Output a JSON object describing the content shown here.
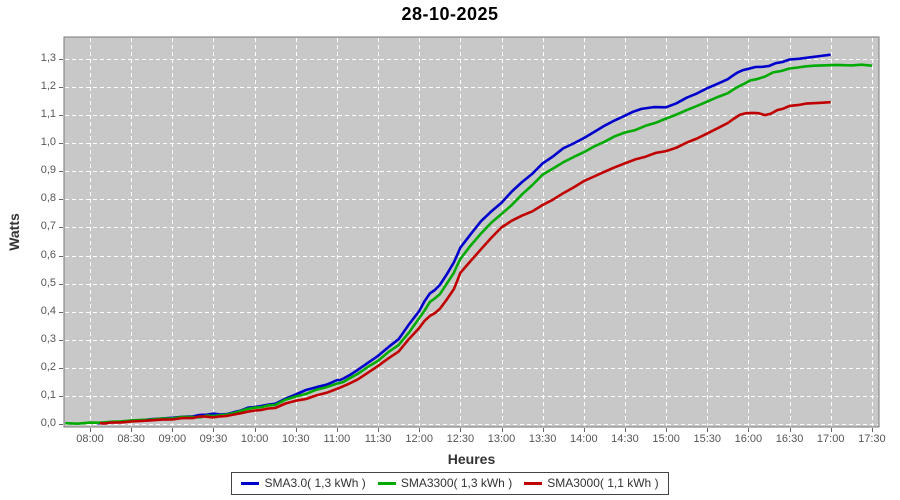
{
  "chart": {
    "title": "28-10-2025",
    "x_axis_label": "Heures",
    "y_axis_label": "Watts",
    "x_tick_labels": [
      "08:00",
      "08:30",
      "09:00",
      "09:30",
      "10:00",
      "10:30",
      "11:00",
      "11:30",
      "12:00",
      "12:30",
      "13:00",
      "13:30",
      "14:00",
      "14:30",
      "15:00",
      "15:30",
      "16:00",
      "16:30",
      "17:00",
      "17:30"
    ],
    "y_tick_labels": [
      "0,0",
      "0,1",
      "0,2",
      "0,3",
      "0,4",
      "0,5",
      "0,6",
      "0,7",
      "0,8",
      "0,9",
      "1,0",
      "1,1",
      "1,2",
      "1,3"
    ]
  },
  "colors": {
    "plot_background": "#C8C8C8",
    "plot_border": "#7A7A7A",
    "gridline": "#FFFFFF",
    "tick_mark": "#666666",
    "tick_text": "#555555",
    "series_blue": "#0000CC",
    "series_green": "#00AA00",
    "series_red": "#C00000"
  },
  "chart_data": {
    "type": "line",
    "title": "28-10-2025",
    "xlabel": "Heures",
    "ylabel": "Watts",
    "x_unit": "hour_of_day",
    "xlim": [
      7.68,
      17.58
    ],
    "ylim": [
      0.0,
      1.3
    ],
    "x_ticks_hours": [
      8.0,
      8.5,
      9.0,
      9.5,
      10.0,
      10.5,
      11.0,
      11.5,
      12.0,
      12.5,
      13.0,
      13.5,
      14.0,
      14.5,
      15.0,
      15.5,
      16.0,
      16.5,
      17.0,
      17.5
    ],
    "y_ticks": [
      0.0,
      0.1,
      0.2,
      0.3,
      0.4,
      0.5,
      0.6,
      0.7,
      0.8,
      0.9,
      1.0,
      1.1,
      1.2,
      1.3
    ],
    "grid": true,
    "grid_style": "white-dashed-on-gray",
    "legend_position": "bottom-center",
    "series": [
      {
        "name": "SMA3.0",
        "legend_label": "SMA3.0( 1,3 kWh )",
        "total_kwh_label": "1,3 kWh",
        "color": "#0000CC",
        "points": [
          [
            8.08,
            0.004
          ],
          [
            8.25,
            0.007
          ],
          [
            8.5,
            0.012
          ],
          [
            8.75,
            0.017
          ],
          [
            9.0,
            0.022
          ],
          [
            9.25,
            0.027
          ],
          [
            9.42,
            0.033
          ],
          [
            9.58,
            0.034
          ],
          [
            9.75,
            0.042
          ],
          [
            9.92,
            0.058
          ],
          [
            10.08,
            0.064
          ],
          [
            10.25,
            0.072
          ],
          [
            10.5,
            0.105
          ],
          [
            10.75,
            0.131
          ],
          [
            11.0,
            0.156
          ],
          [
            11.08,
            0.162
          ],
          [
            11.25,
            0.192
          ],
          [
            11.5,
            0.243
          ],
          [
            11.75,
            0.302
          ],
          [
            12.0,
            0.402
          ],
          [
            12.13,
            0.465
          ],
          [
            12.25,
            0.495
          ],
          [
            12.42,
            0.575
          ],
          [
            12.5,
            0.628
          ],
          [
            12.75,
            0.722
          ],
          [
            13.0,
            0.788
          ],
          [
            13.25,
            0.862
          ],
          [
            13.5,
            0.928
          ],
          [
            13.75,
            0.982
          ],
          [
            14.0,
            1.018
          ],
          [
            14.25,
            1.062
          ],
          [
            14.5,
            1.098
          ],
          [
            14.7,
            1.122
          ],
          [
            15.0,
            1.128
          ],
          [
            15.25,
            1.162
          ],
          [
            15.5,
            1.196
          ],
          [
            15.75,
            1.228
          ],
          [
            15.87,
            1.252
          ],
          [
            16.0,
            1.265
          ],
          [
            16.17,
            1.272
          ],
          [
            16.33,
            1.285
          ],
          [
            16.5,
            1.298
          ],
          [
            16.75,
            1.306
          ],
          [
            17.0,
            1.315
          ]
        ]
      },
      {
        "name": "SMA3300",
        "legend_label": "SMA3300( 1,3 kWh )",
        "total_kwh_label": "1,3 kWh",
        "color": "#00AA00",
        "points": [
          [
            7.7,
            0.003
          ],
          [
            8.0,
            0.005
          ],
          [
            8.25,
            0.008
          ],
          [
            8.5,
            0.012
          ],
          [
            8.75,
            0.016
          ],
          [
            9.0,
            0.02
          ],
          [
            9.25,
            0.025
          ],
          [
            9.42,
            0.03
          ],
          [
            9.58,
            0.031
          ],
          [
            9.75,
            0.039
          ],
          [
            9.92,
            0.054
          ],
          [
            10.08,
            0.06
          ],
          [
            10.25,
            0.068
          ],
          [
            10.5,
            0.098
          ],
          [
            10.75,
            0.122
          ],
          [
            11.0,
            0.144
          ],
          [
            11.08,
            0.15
          ],
          [
            11.25,
            0.178
          ],
          [
            11.5,
            0.225
          ],
          [
            11.75,
            0.281
          ],
          [
            12.0,
            0.377
          ],
          [
            12.13,
            0.435
          ],
          [
            12.25,
            0.462
          ],
          [
            12.42,
            0.538
          ],
          [
            12.5,
            0.588
          ],
          [
            12.75,
            0.678
          ],
          [
            13.0,
            0.748
          ],
          [
            13.25,
            0.818
          ],
          [
            13.5,
            0.888
          ],
          [
            13.75,
            0.932
          ],
          [
            14.0,
            0.968
          ],
          [
            14.25,
            1.005
          ],
          [
            14.5,
            1.038
          ],
          [
            14.75,
            1.062
          ],
          [
            15.0,
            1.088
          ],
          [
            15.25,
            1.118
          ],
          [
            15.5,
            1.148
          ],
          [
            15.75,
            1.178
          ],
          [
            15.95,
            1.212
          ],
          [
            16.1,
            1.228
          ],
          [
            16.3,
            1.252
          ],
          [
            16.5,
            1.266
          ],
          [
            16.7,
            1.274
          ],
          [
            16.9,
            1.277
          ],
          [
            17.25,
            1.277
          ],
          [
            17.5,
            1.276
          ]
        ]
      },
      {
        "name": "SMA3000",
        "legend_label": "SMA3000( 1,1 kWh )",
        "total_kwh_label": "1,1 kWh",
        "color": "#C00000",
        "points": [
          [
            8.12,
            0.003
          ],
          [
            8.25,
            0.005
          ],
          [
            8.5,
            0.009
          ],
          [
            8.75,
            0.013
          ],
          [
            9.0,
            0.016
          ],
          [
            9.25,
            0.021
          ],
          [
            9.42,
            0.026
          ],
          [
            9.58,
            0.027
          ],
          [
            9.75,
            0.034
          ],
          [
            9.92,
            0.044
          ],
          [
            10.08,
            0.05
          ],
          [
            10.25,
            0.057
          ],
          [
            10.5,
            0.083
          ],
          [
            10.75,
            0.102
          ],
          [
            11.0,
            0.125
          ],
          [
            11.25,
            0.158
          ],
          [
            11.5,
            0.207
          ],
          [
            11.75,
            0.258
          ],
          [
            12.0,
            0.342
          ],
          [
            12.13,
            0.385
          ],
          [
            12.25,
            0.41
          ],
          [
            12.42,
            0.48
          ],
          [
            12.5,
            0.538
          ],
          [
            12.75,
            0.622
          ],
          [
            13.0,
            0.7
          ],
          [
            13.25,
            0.742
          ],
          [
            13.5,
            0.78
          ],
          [
            13.75,
            0.822
          ],
          [
            14.0,
            0.865
          ],
          [
            14.25,
            0.898
          ],
          [
            14.5,
            0.928
          ],
          [
            14.75,
            0.952
          ],
          [
            15.0,
            0.972
          ],
          [
            15.25,
            1.002
          ],
          [
            15.5,
            1.035
          ],
          [
            15.75,
            1.072
          ],
          [
            15.9,
            1.102
          ],
          [
            16.05,
            1.108
          ],
          [
            16.2,
            1.1
          ],
          [
            16.35,
            1.118
          ],
          [
            16.5,
            1.133
          ],
          [
            16.7,
            1.141
          ],
          [
            17.0,
            1.146
          ]
        ]
      }
    ]
  }
}
